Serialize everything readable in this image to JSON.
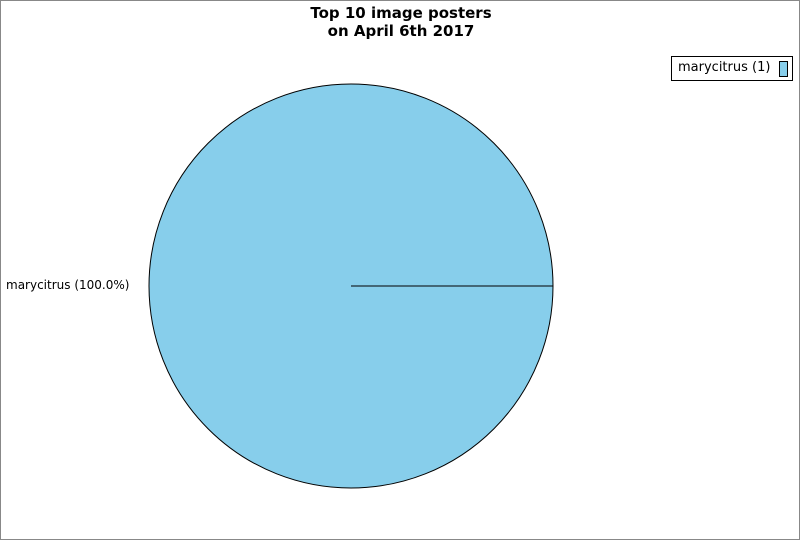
{
  "chart_data": {
    "type": "pie",
    "title": [
      "Top 10 image posters",
      "on April 6th 2017"
    ],
    "slices": [
      {
        "label": "marycitrus",
        "value": 1,
        "percent": "100.0%",
        "color": "#87ceeb"
      }
    ],
    "slice_label_text": "marycitrus (100.0%)",
    "legend": {
      "position": "top-right",
      "entries": [
        "marycitrus (1)"
      ]
    }
  }
}
